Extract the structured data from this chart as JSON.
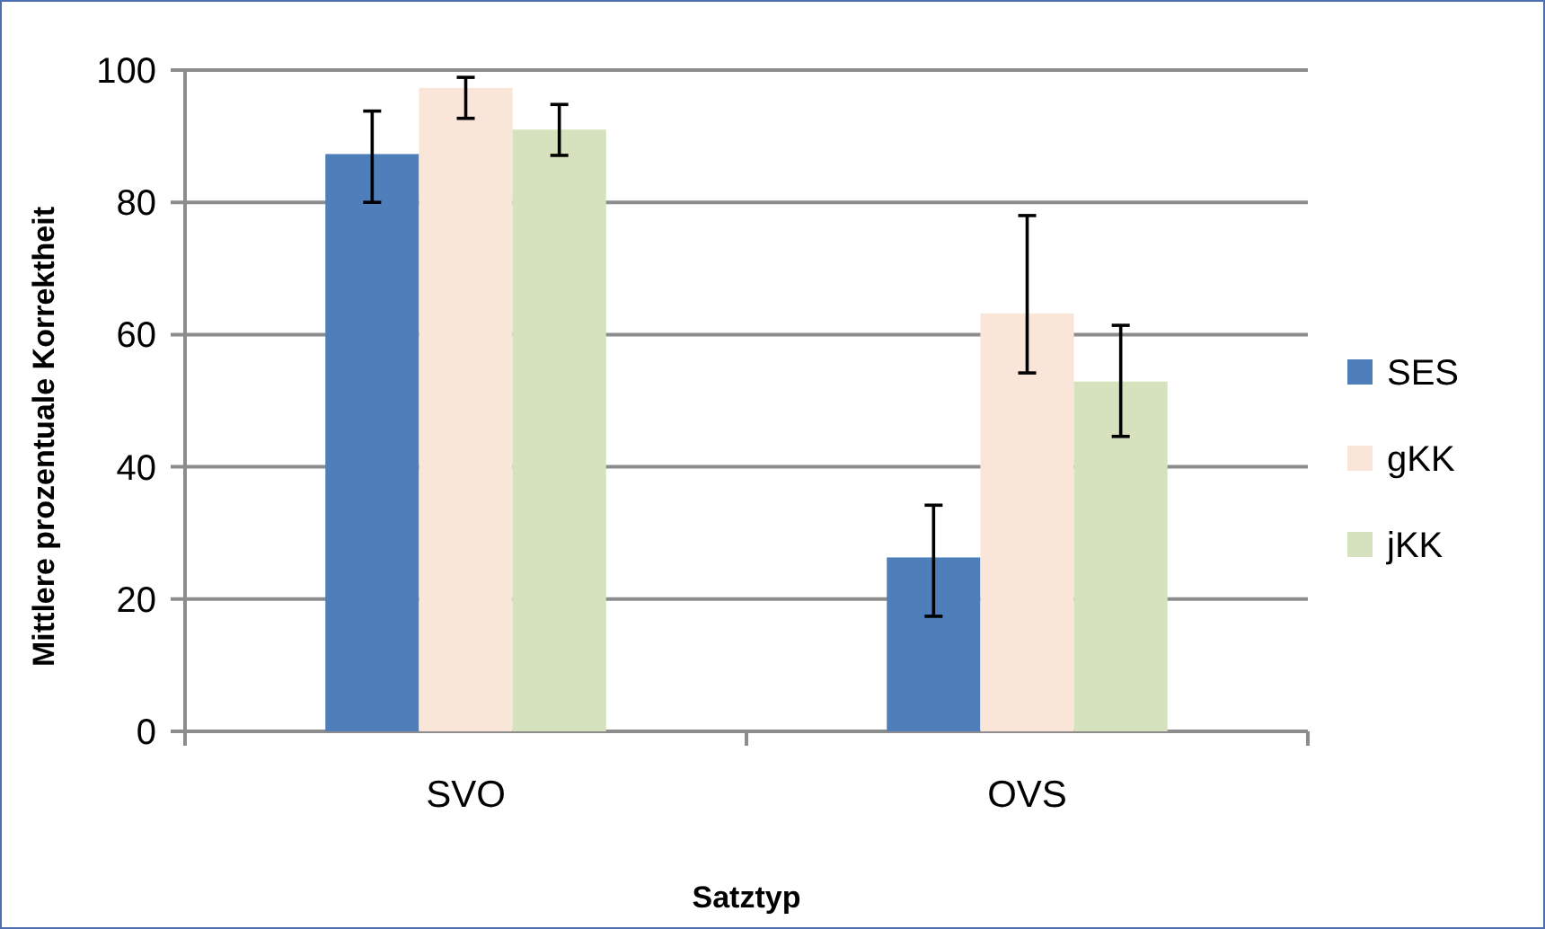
{
  "chart_data": {
    "type": "bar",
    "xlabel": "Satztyp",
    "ylabel": "Mittlere prozentuale Korrektheit",
    "categories": [
      "SVO",
      "OVS"
    ],
    "series": [
      {
        "name": "SES",
        "color": "#4f7fbb",
        "values": [
          87.3,
          26.3
        ],
        "errors": [
          [
            80,
            93.8
          ],
          [
            17.4,
            34.2
          ]
        ]
      },
      {
        "name": "gKK",
        "color": "#fae6d9",
        "values": [
          97.3,
          63.2
        ],
        "errors": [
          [
            92.7,
            98.9
          ],
          [
            54.2,
            78
          ]
        ]
      },
      {
        "name": "jKK",
        "color": "#d5e2bd",
        "values": [
          91,
          52.9
        ],
        "errors": [
          [
            87.1,
            94.8
          ],
          [
            44.6,
            61.4
          ]
        ]
      }
    ],
    "ylim": [
      0,
      100
    ],
    "yticks": [
      0,
      20,
      40,
      60,
      80,
      100
    ],
    "grid": "y",
    "legend": "right"
  }
}
